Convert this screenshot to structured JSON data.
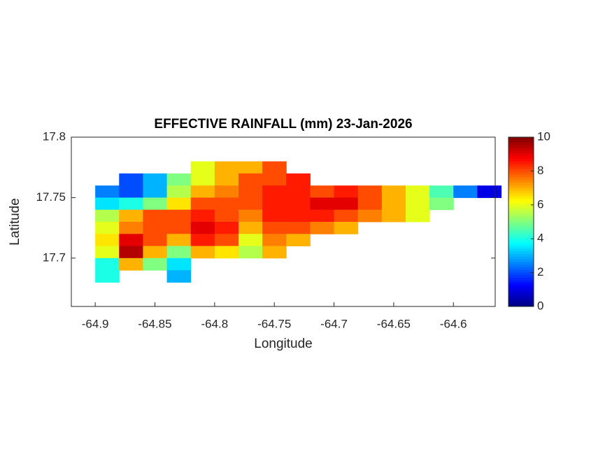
{
  "chart_data": {
    "type": "heatmap",
    "title": "EFFECTIVE RAINFALL (mm) 23-Jan-2026",
    "xlabel": "Longitude",
    "ylabel": "Latitude",
    "xlim": [
      -64.92,
      -64.565
    ],
    "ylim": [
      17.66,
      17.8
    ],
    "xticks": [
      -64.9,
      -64.85,
      -64.8,
      -64.75,
      -64.7,
      -64.65,
      -64.6
    ],
    "yticks": [
      17.7,
      17.75,
      17.8
    ],
    "colormap": "jet",
    "clim": [
      0,
      10
    ],
    "cticks": [
      0,
      2,
      4,
      6,
      8,
      10
    ],
    "x": [
      -64.91,
      -64.89,
      -64.87,
      -64.85,
      -64.83,
      -64.81,
      -64.79,
      -64.77,
      -64.75,
      -64.73,
      -64.71,
      -64.69,
      -64.67,
      -64.65,
      -64.63,
      -64.61,
      -64.59,
      -64.57
    ],
    "y": [
      17.775,
      17.765,
      17.755,
      17.745,
      17.735,
      17.725,
      17.715,
      17.705,
      17.695,
      17.685
    ],
    "z": [
      [
        null,
        null,
        null,
        null,
        null,
        6,
        7,
        7,
        8,
        null,
        null,
        null,
        null,
        null,
        null,
        null,
        null,
        null
      ],
      [
        null,
        null,
        2,
        3,
        5,
        6,
        7,
        8,
        8,
        8.5,
        null,
        null,
        null,
        null,
        null,
        null,
        null,
        null
      ],
      [
        null,
        2.5,
        2,
        3,
        5.5,
        7,
        7.5,
        8,
        8.5,
        8.5,
        8,
        8.5,
        8,
        7,
        6,
        4.5,
        2.5,
        1
      ],
      [
        null,
        3.5,
        4,
        5,
        6.5,
        8,
        8,
        8,
        8.5,
        8.5,
        9,
        9,
        8,
        7,
        6,
        5,
        null,
        null
      ],
      [
        null,
        5.5,
        7,
        8,
        8,
        8.5,
        8,
        7.5,
        8.5,
        8.5,
        8.5,
        8,
        7.5,
        7,
        6,
        null,
        null,
        null
      ],
      [
        null,
        6,
        7.5,
        8,
        8,
        9,
        8.5,
        7,
        8,
        8,
        7.5,
        7,
        null,
        null,
        null,
        null,
        null,
        null
      ],
      [
        null,
        6.5,
        9,
        8,
        7,
        8.5,
        8,
        6,
        7.5,
        7,
        null,
        null,
        null,
        null,
        null,
        null,
        null,
        null
      ],
      [
        null,
        6,
        9.5,
        7,
        5,
        7,
        6.5,
        5.5,
        7,
        null,
        null,
        null,
        null,
        null,
        null,
        null,
        null,
        null
      ],
      [
        null,
        4,
        7,
        5,
        3.5,
        null,
        null,
        null,
        null,
        null,
        null,
        null,
        null,
        null,
        null,
        null,
        null,
        null
      ],
      [
        null,
        4,
        null,
        null,
        3,
        null,
        null,
        null,
        null,
        null,
        null,
        null,
        null,
        null,
        null,
        null,
        null,
        null
      ]
    ]
  }
}
